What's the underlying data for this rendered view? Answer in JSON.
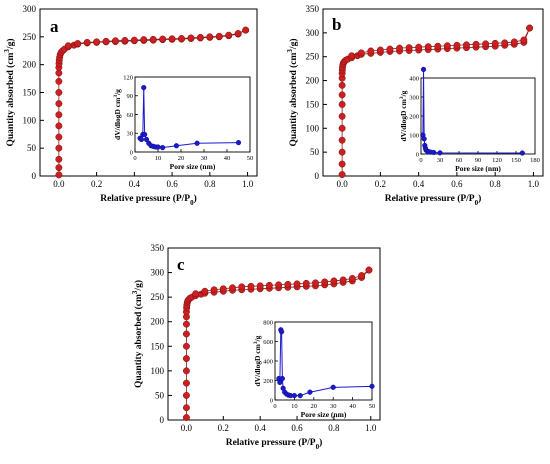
{
  "chart_data": [
    {
      "type": "scatter",
      "panel_label": "a",
      "xlabel": "Relative pressure (P/P",
      "xlabel_sub": "0",
      "xlabel_end": ")",
      "ylabel": "Quantity absorbed (cm",
      "ylabel_sup": "3",
      "ylabel_end": "/g)",
      "xlim": [
        -0.1,
        1.05
      ],
      "ylim": [
        0,
        300
      ],
      "xticks": [
        0.0,
        0.2,
        0.4,
        0.6,
        0.8,
        1.0
      ],
      "xtick_labels": [
        "0.0",
        "0.2",
        "0.4",
        "0.6",
        "0.8",
        "1.0"
      ],
      "yticks": [
        0,
        50,
        100,
        150,
        200,
        250,
        300
      ],
      "ytick_labels": [
        "0",
        "50",
        "100",
        "150",
        "200",
        "250",
        "300"
      ],
      "series": [
        {
          "color": "#cc1f1f",
          "x": [
            0.0,
            0.0,
            0.0,
            0.0,
            0.0,
            0.0,
            0.0,
            0.0,
            0.0,
            0.0,
            0.0,
            0.0,
            0.001,
            0.002,
            0.004,
            0.007,
            0.012,
            0.02,
            0.03,
            0.05,
            0.08,
            0.1,
            0.15,
            0.2,
            0.25,
            0.3,
            0.35,
            0.4,
            0.45,
            0.5,
            0.55,
            0.6,
            0.65,
            0.7,
            0.75,
            0.8,
            0.85,
            0.9,
            0.95,
            0.99
          ],
          "y": [
            2,
            15,
            30,
            50,
            70,
            90,
            110,
            130,
            150,
            170,
            185,
            195,
            202,
            208,
            213,
            218,
            222,
            225,
            228,
            232,
            235,
            237,
            239,
            240,
            241,
            241.5,
            242,
            243,
            243.5,
            244,
            245,
            245.5,
            246,
            247,
            248,
            249,
            250,
            252,
            255,
            262
          ]
        },
        {
          "color": "#cc1f1f",
          "x": [
            0.99,
            0.95,
            0.9,
            0.85,
            0.8,
            0.75,
            0.7,
            0.65,
            0.6,
            0.55,
            0.5,
            0.45,
            0.4,
            0.35,
            0.3,
            0.25,
            0.2,
            0.15,
            0.1,
            0.05
          ],
          "y": [
            262,
            256,
            253,
            251,
            250,
            249,
            248,
            247,
            246.5,
            246,
            245.5,
            245,
            244,
            243.5,
            243,
            242,
            241,
            240,
            238,
            234
          ]
        }
      ],
      "inset": {
        "xlabel": "Pore size (nm)",
        "ylabel": "dV/dlogD cm",
        "ylabel_sup": "3",
        "ylabel_end": "/g",
        "xlim": [
          0,
          50
        ],
        "ylim": [
          0,
          120
        ],
        "xticks": [
          0,
          10,
          20,
          30,
          40,
          50
        ],
        "xtick_labels": [
          "0",
          "10",
          "20",
          "30",
          "40",
          "50"
        ],
        "yticks": [
          0,
          30,
          60,
          90,
          120
        ],
        "ytick_labels": [
          "0",
          "30",
          "60",
          "90",
          "120"
        ],
        "color": "#1a1acc",
        "x": [
          2.2,
          2.8,
          3.4,
          3.8,
          4.2,
          5,
          6,
          7,
          8,
          9,
          10,
          12,
          18,
          27,
          45
        ],
        "y": [
          22,
          20,
          28,
          103,
          28,
          20,
          14,
          10,
          9,
          8,
          8,
          7,
          10,
          14,
          15
        ]
      }
    },
    {
      "type": "scatter",
      "panel_label": "b",
      "xlabel": "Relative pressure (P/P",
      "xlabel_sub": "0",
      "xlabel_end": ")",
      "ylabel": "Quantity absorbed (cm",
      "ylabel_sup": "3",
      "ylabel_end": "/g)",
      "xlim": [
        -0.1,
        1.05
      ],
      "ylim": [
        0,
        350
      ],
      "xticks": [
        0.0,
        0.2,
        0.4,
        0.6,
        0.8,
        1.0
      ],
      "xtick_labels": [
        "0.0",
        "0.2",
        "0.4",
        "0.6",
        "0.8",
        "1.0"
      ],
      "yticks": [
        0,
        50,
        100,
        150,
        200,
        250,
        300,
        350
      ],
      "ytick_labels": [
        "0",
        "50",
        "100",
        "150",
        "200",
        "250",
        "300",
        "350"
      ],
      "series": [
        {
          "color": "#cc1f1f",
          "x": [
            0.0,
            0.0,
            0.0,
            0.0,
            0.0,
            0.0,
            0.0,
            0.0,
            0.0,
            0.0,
            0.0,
            0.001,
            0.002,
            0.004,
            0.007,
            0.012,
            0.02,
            0.03,
            0.05,
            0.08,
            0.1,
            0.15,
            0.2,
            0.25,
            0.3,
            0.35,
            0.4,
            0.45,
            0.5,
            0.55,
            0.6,
            0.65,
            0.7,
            0.75,
            0.8,
            0.85,
            0.9,
            0.95,
            0.98
          ],
          "y": [
            3,
            25,
            50,
            75,
            100,
            125,
            150,
            170,
            190,
            205,
            215,
            222,
            228,
            233,
            237,
            240,
            243,
            245,
            248,
            252,
            255,
            257,
            259,
            261,
            262,
            263,
            264,
            265,
            266,
            267,
            268,
            269,
            270,
            271,
            272,
            274,
            276,
            280,
            310
          ]
        },
        {
          "color": "#cc1f1f",
          "x": [
            0.98,
            0.95,
            0.9,
            0.85,
            0.8,
            0.75,
            0.7,
            0.65,
            0.6,
            0.55,
            0.5,
            0.45,
            0.4,
            0.35,
            0.3,
            0.25,
            0.2,
            0.15,
            0.1,
            0.05
          ],
          "y": [
            310,
            285,
            281,
            279,
            278,
            277,
            276,
            275,
            274,
            273,
            272,
            271,
            270,
            269,
            268,
            266,
            264,
            262,
            258,
            252
          ]
        }
      ],
      "inset": {
        "xlabel": "Pore size (nm)",
        "ylabel": "dV/dlogD cm",
        "ylabel_sup": "3",
        "ylabel_end": "/g",
        "xlim": [
          0,
          180
        ],
        "ylim": [
          0,
          400
        ],
        "xticks": [
          0,
          30,
          60,
          90,
          120,
          150,
          180
        ],
        "xtick_labels": [
          "0",
          "30",
          "60",
          "90",
          "120",
          "150",
          "180"
        ],
        "yticks": [
          0,
          100,
          200,
          300,
          400
        ],
        "ytick_labels": [
          "0",
          "100",
          "200",
          "300",
          "400"
        ],
        "color": "#1a1acc",
        "x": [
          3,
          4,
          5,
          6,
          7,
          8,
          10,
          12,
          15,
          20,
          30,
          160
        ],
        "y": [
          100,
          445,
          80,
          45,
          30,
          20,
          15,
          12,
          10,
          8,
          6,
          5
        ]
      }
    },
    {
      "type": "scatter",
      "panel_label": "c",
      "xlabel": "Relative pressure (P/P",
      "xlabel_sub": "0",
      "xlabel_end": ")",
      "ylabel": "Quantity absorbed (cm",
      "ylabel_sup": "3",
      "ylabel_end": "/g)",
      "xlim": [
        -0.1,
        1.05
      ],
      "ylim": [
        0,
        350
      ],
      "xticks": [
        0.0,
        0.2,
        0.4,
        0.6,
        0.8,
        1.0
      ],
      "xtick_labels": [
        "0.0",
        "0.2",
        "0.4",
        "0.6",
        "0.8",
        "1.0"
      ],
      "yticks": [
        0,
        50,
        100,
        150,
        200,
        250,
        300,
        350
      ],
      "ytick_labels": [
        "0",
        "50",
        "100",
        "150",
        "200",
        "250",
        "300",
        "350"
      ],
      "series": [
        {
          "color": "#cc1f1f",
          "x": [
            0.0,
            0.0,
            0.0,
            0.0,
            0.0,
            0.0,
            0.0,
            0.0,
            0.0,
            0.0,
            0.0,
            0.001,
            0.002,
            0.004,
            0.007,
            0.012,
            0.02,
            0.03,
            0.05,
            0.08,
            0.1,
            0.15,
            0.2,
            0.25,
            0.3,
            0.35,
            0.4,
            0.45,
            0.5,
            0.55,
            0.6,
            0.65,
            0.7,
            0.75,
            0.8,
            0.85,
            0.9,
            0.95,
            0.99
          ],
          "y": [
            5,
            25,
            50,
            75,
            100,
            125,
            150,
            175,
            195,
            210,
            220,
            228,
            233,
            238,
            242,
            245,
            248,
            250,
            253,
            256,
            258,
            260,
            262,
            264,
            265,
            266,
            267,
            268,
            269,
            270,
            271,
            272,
            273,
            275,
            277,
            280,
            283,
            290,
            305
          ]
        },
        {
          "color": "#cc1f1f",
          "x": [
            0.99,
            0.95,
            0.9,
            0.85,
            0.8,
            0.75,
            0.7,
            0.65,
            0.6,
            0.55,
            0.5,
            0.45,
            0.4,
            0.35,
            0.3,
            0.25,
            0.2,
            0.15,
            0.1,
            0.05
          ],
          "y": [
            305,
            294,
            288,
            285,
            283,
            281,
            279,
            278,
            277,
            276,
            275,
            274,
            273,
            272,
            271,
            269,
            267,
            265,
            262,
            257
          ]
        }
      ],
      "inset": {
        "xlabel": "Pore size (nm)",
        "ylabel": "dV/dlogD cm",
        "ylabel_sup": "3",
        "ylabel_end": "/g",
        "xlim": [
          0,
          50
        ],
        "ylim": [
          0,
          800
        ],
        "xticks": [
          0,
          10,
          20,
          30,
          40,
          50
        ],
        "xtick_labels": [
          "0",
          "10",
          "20",
          "30",
          "40",
          "50"
        ],
        "yticks": [
          0,
          200,
          400,
          600,
          800
        ],
        "ytick_labels": [
          "0",
          "200",
          "400",
          "600",
          "800"
        ],
        "color": "#1a1acc",
        "x": [
          2,
          2.5,
          3,
          3.4,
          3.8,
          4.2,
          5,
          6,
          7,
          8,
          10,
          13,
          18,
          30,
          50
        ],
        "y": [
          220,
          180,
          720,
          700,
          220,
          120,
          80,
          60,
          50,
          45,
          45,
          45,
          80,
          130,
          140
        ]
      }
    }
  ]
}
